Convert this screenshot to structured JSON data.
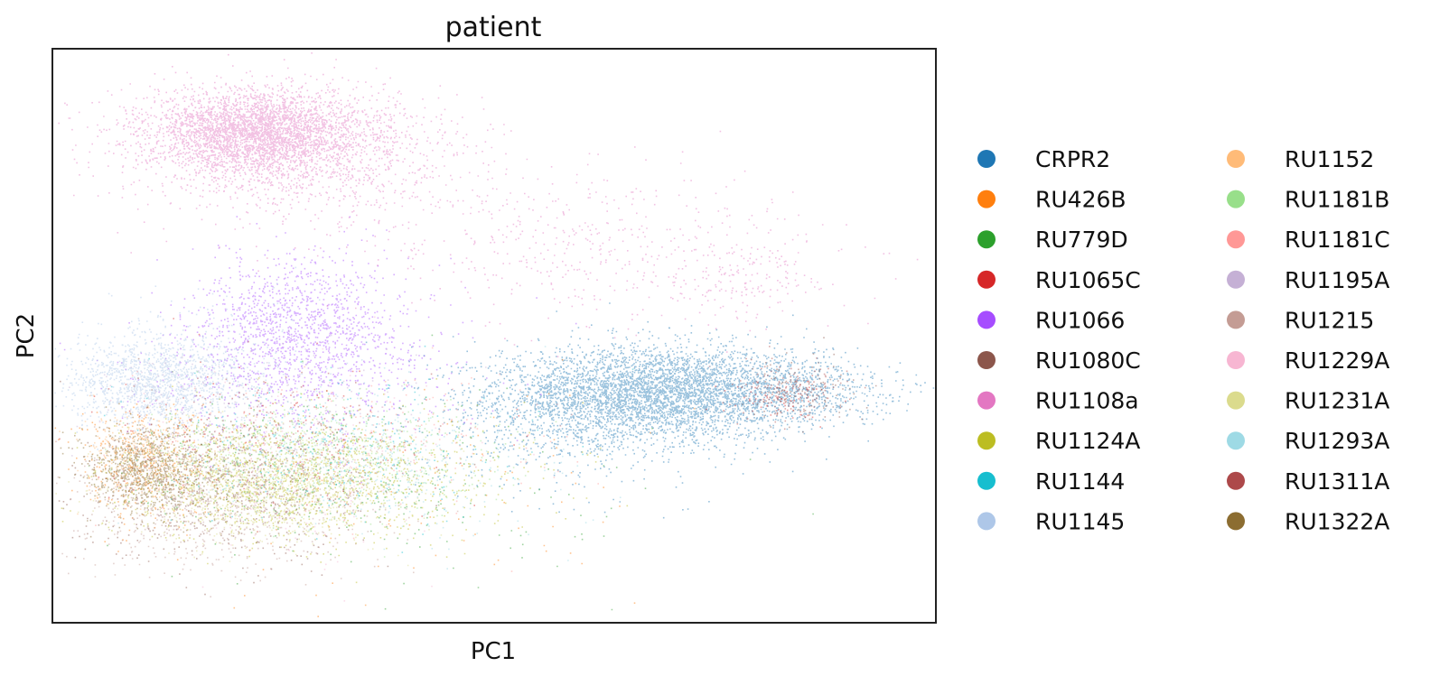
{
  "chart_data": {
    "type": "scatter",
    "title": "patient",
    "xlabel": "PC1",
    "ylabel": "PC2",
    "xlim": [
      0,
      100
    ],
    "ylim": [
      0,
      100
    ],
    "grid": false,
    "ticks_shown": false,
    "legend_placement": "right, outside plot, 2 columns",
    "series": [
      {
        "name": "CRPR2",
        "color": "#1f77b4",
        "clusters": [
          {
            "cx": 69,
            "cy": 40,
            "sx": 9,
            "sy": 4,
            "n": 4200
          },
          {
            "cx": 58,
            "cy": 36,
            "sx": 7,
            "sy": 6,
            "n": 700
          },
          {
            "cx": 84,
            "cy": 41,
            "sx": 6,
            "sy": 3,
            "n": 500
          }
        ]
      },
      {
        "name": "RU426B",
        "color": "#ff7f0e",
        "clusters": [
          {
            "cx": 10,
            "cy": 28,
            "sx": 4,
            "sy": 5,
            "n": 350
          },
          {
            "cx": 35,
            "cy": 22,
            "sx": 16,
            "sy": 10,
            "n": 120
          }
        ]
      },
      {
        "name": "RU779D",
        "color": "#2ca02c",
        "clusters": [
          {
            "cx": 28,
            "cy": 26,
            "sx": 10,
            "sy": 7,
            "n": 250
          },
          {
            "cx": 48,
            "cy": 20,
            "sx": 12,
            "sy": 8,
            "n": 90
          }
        ]
      },
      {
        "name": "RU1065C",
        "color": "#d62728",
        "clusters": [
          {
            "cx": 24,
            "cy": 33,
            "sx": 9,
            "sy": 6,
            "n": 200
          },
          {
            "cx": 82,
            "cy": 39,
            "sx": 3,
            "sy": 2,
            "n": 60
          }
        ]
      },
      {
        "name": "RU1066",
        "color": "#a64dff",
        "clusters": [
          {
            "cx": 28,
            "cy": 52,
            "sx": 6,
            "sy": 6,
            "n": 1200
          },
          {
            "cx": 27,
            "cy": 42,
            "sx": 10,
            "sy": 6,
            "n": 500
          }
        ]
      },
      {
        "name": "RU1080C",
        "color": "#8c564b",
        "clusters": [
          {
            "cx": 20,
            "cy": 23,
            "sx": 9,
            "sy": 6,
            "n": 600
          },
          {
            "cx": 85,
            "cy": 40,
            "sx": 3,
            "sy": 3,
            "n": 120
          }
        ]
      },
      {
        "name": "RU1108a",
        "color": "#e377c2",
        "clusters": [
          {
            "cx": 23,
            "cy": 86,
            "sx": 6,
            "sy": 3.5,
            "n": 3000
          },
          {
            "cx": 27,
            "cy": 82,
            "sx": 10,
            "sy": 6,
            "n": 1500
          },
          {
            "cx": 62,
            "cy": 66,
            "sx": 14,
            "sy": 7,
            "n": 500
          },
          {
            "cx": 78,
            "cy": 60,
            "sx": 4,
            "sy": 3,
            "n": 150
          }
        ]
      },
      {
        "name": "RU1124A",
        "color": "#bcbd22",
        "clusters": [
          {
            "cx": 25,
            "cy": 25,
            "sx": 9,
            "sy": 5,
            "n": 1100
          },
          {
            "cx": 40,
            "cy": 26,
            "sx": 10,
            "sy": 6,
            "n": 300
          }
        ]
      },
      {
        "name": "RU1144",
        "color": "#17becf",
        "clusters": [
          {
            "cx": 32,
            "cy": 30,
            "sx": 10,
            "sy": 6,
            "n": 300
          }
        ]
      },
      {
        "name": "RU1145",
        "color": "#aec7e8",
        "clusters": [
          {
            "cx": 11,
            "cy": 42,
            "sx": 5,
            "sy": 4,
            "n": 1300
          },
          {
            "cx": 15,
            "cy": 45,
            "sx": 7,
            "sy": 6,
            "n": 300
          }
        ]
      },
      {
        "name": "RU1152",
        "color": "#ffbb78",
        "clusters": [
          {
            "cx": 10,
            "cy": 29,
            "sx": 3.5,
            "sy": 4,
            "n": 300
          }
        ]
      },
      {
        "name": "RU1181B",
        "color": "#98df8a",
        "clusters": [
          {
            "cx": 30,
            "cy": 29,
            "sx": 10,
            "sy": 5,
            "n": 500
          }
        ]
      },
      {
        "name": "RU1181C",
        "color": "#ff9896",
        "clusters": [
          {
            "cx": 35,
            "cy": 32,
            "sx": 12,
            "sy": 7,
            "n": 200
          }
        ]
      },
      {
        "name": "RU1195A",
        "color": "#c5b0d5",
        "clusters": [
          {
            "cx": 22,
            "cy": 36,
            "sx": 9,
            "sy": 6,
            "n": 250
          }
        ]
      },
      {
        "name": "RU1215",
        "color": "#c49c94",
        "clusters": [
          {
            "cx": 18,
            "cy": 20,
            "sx": 9,
            "sy": 6,
            "n": 700
          }
        ]
      },
      {
        "name": "RU1229A",
        "color": "#f7b6d2",
        "clusters": [
          {
            "cx": 26,
            "cy": 28,
            "sx": 10,
            "sy": 8,
            "n": 200
          }
        ]
      },
      {
        "name": "RU1231A",
        "color": "#dbdb8d",
        "clusters": [
          {
            "cx": 24,
            "cy": 24,
            "sx": 8,
            "sy": 5,
            "n": 900
          }
        ]
      },
      {
        "name": "RU1293A",
        "color": "#9edae5",
        "clusters": [
          {
            "cx": 36,
            "cy": 28,
            "sx": 10,
            "sy": 6,
            "n": 400
          }
        ]
      },
      {
        "name": "RU1311A",
        "color": "#ad494a",
        "clusters": [
          {
            "cx": 84,
            "cy": 40,
            "sx": 3,
            "sy": 2.5,
            "n": 150
          },
          {
            "cx": 25,
            "cy": 34,
            "sx": 8,
            "sy": 5,
            "n": 100
          }
        ]
      },
      {
        "name": "RU1322A",
        "color": "#8c6d31",
        "clusters": [
          {
            "cx": 10,
            "cy": 27,
            "sx": 3,
            "sy": 3.5,
            "n": 700
          },
          {
            "cx": 14,
            "cy": 25,
            "sx": 5,
            "sy": 4,
            "n": 200
          }
        ]
      }
    ]
  }
}
